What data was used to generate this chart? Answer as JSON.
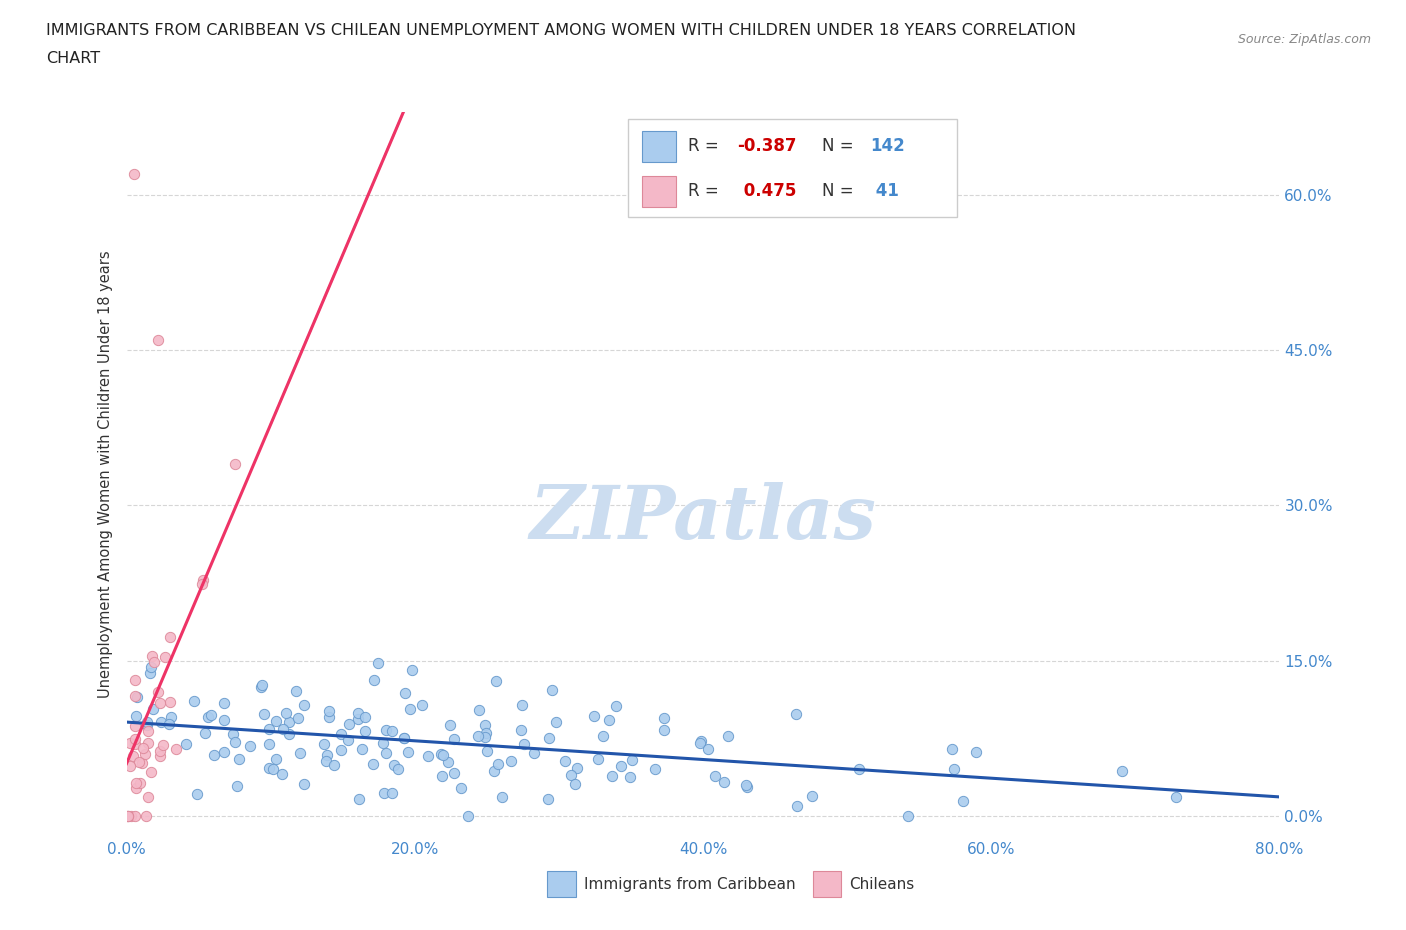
{
  "title_line1": "IMMIGRANTS FROM CARIBBEAN VS CHILEAN UNEMPLOYMENT AMONG WOMEN WITH CHILDREN UNDER 18 YEARS CORRELATION",
  "title_line2": "CHART",
  "source": "Source: ZipAtlas.com",
  "ylabel": "Unemployment Among Women with Children Under 18 years",
  "xlim": [
    0.0,
    0.8
  ],
  "ylim": [
    -0.02,
    0.68
  ],
  "right_yticks": [
    0.0,
    0.15,
    0.3,
    0.45,
    0.6
  ],
  "right_yticklabels": [
    "0.0%",
    "15.0%",
    "30.0%",
    "45.0%",
    "60.0%"
  ],
  "xticks": [
    0.0,
    0.2,
    0.4,
    0.6,
    0.8
  ],
  "xticklabels": [
    "0.0%",
    "20.0%",
    "40.0%",
    "60.0%",
    "80.0%"
  ],
  "series_blue": {
    "name": "Immigrants from Caribbean",
    "color": "#aaccee",
    "edge_color": "#6699cc",
    "R": -0.387,
    "N": 142,
    "trend_color": "#2255aa",
    "R_label": "-0.387",
    "N_label": "142"
  },
  "series_pink": {
    "name": "Chileans",
    "color": "#f4b8c8",
    "edge_color": "#dd8899",
    "R": 0.475,
    "N": 41,
    "trend_color": "#ee3366",
    "R_label": "0.475",
    "N_label": "41"
  },
  "watermark": "ZIPatlas",
  "watermark_color": "#ccddf0",
  "background_color": "#ffffff",
  "grid_color": "#cccccc",
  "title_color": "#222222",
  "axis_tick_color": "#4488cc",
  "legend_R_color": "#cc0000",
  "legend_N_color": "#4488cc",
  "legend_text_color": "#333333"
}
